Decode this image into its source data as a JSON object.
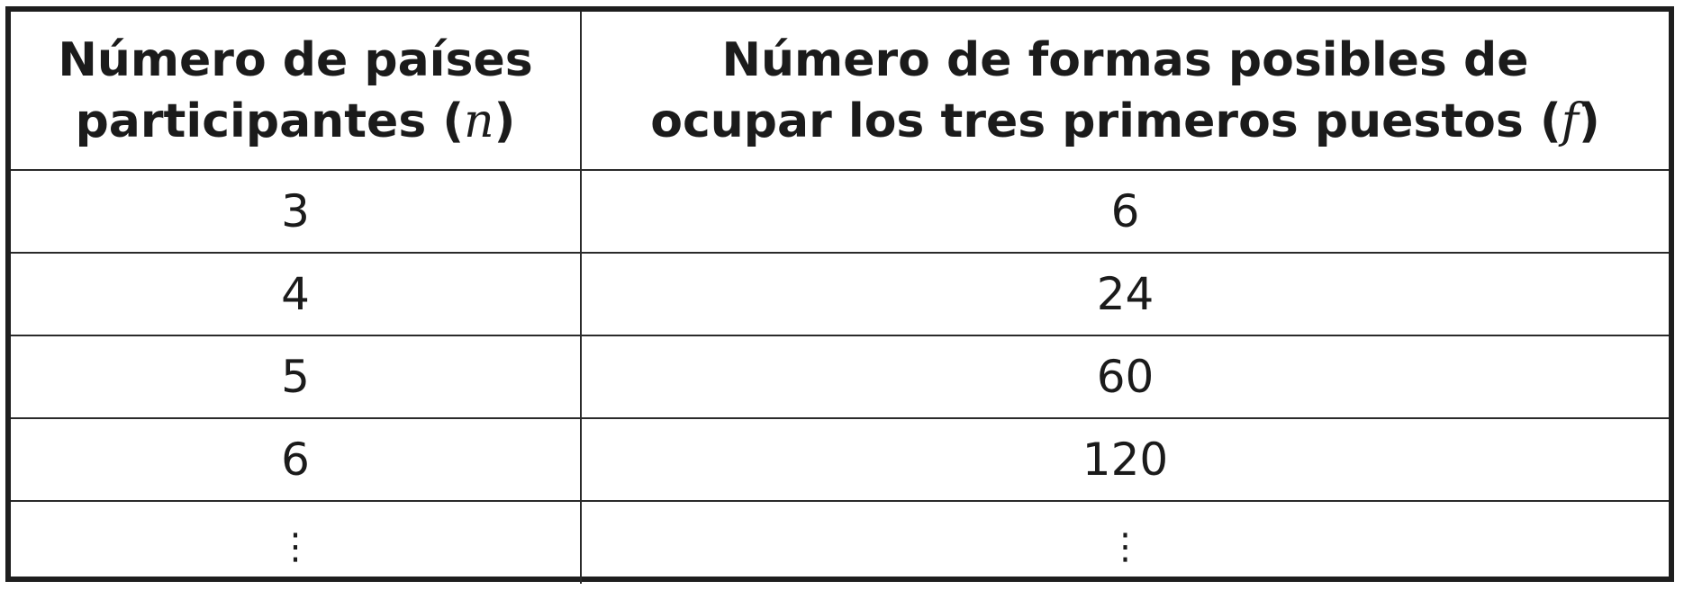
{
  "table": {
    "headers": [
      {
        "line1": "Número de países",
        "line2_prefix": "participantes (",
        "variable": "n",
        "line2_suffix": ")"
      },
      {
        "line1": "Número de formas posibles de",
        "line2_prefix": "ocupar los tres primeros puestos (",
        "variable": "f",
        "line2_suffix": ")"
      }
    ],
    "rows": [
      {
        "n": "3",
        "f": "6"
      },
      {
        "n": "4",
        "f": "24"
      },
      {
        "n": "5",
        "f": "60"
      },
      {
        "n": "6",
        "f": "120"
      },
      {
        "n": "⋮",
        "f": "⋮"
      }
    ]
  }
}
